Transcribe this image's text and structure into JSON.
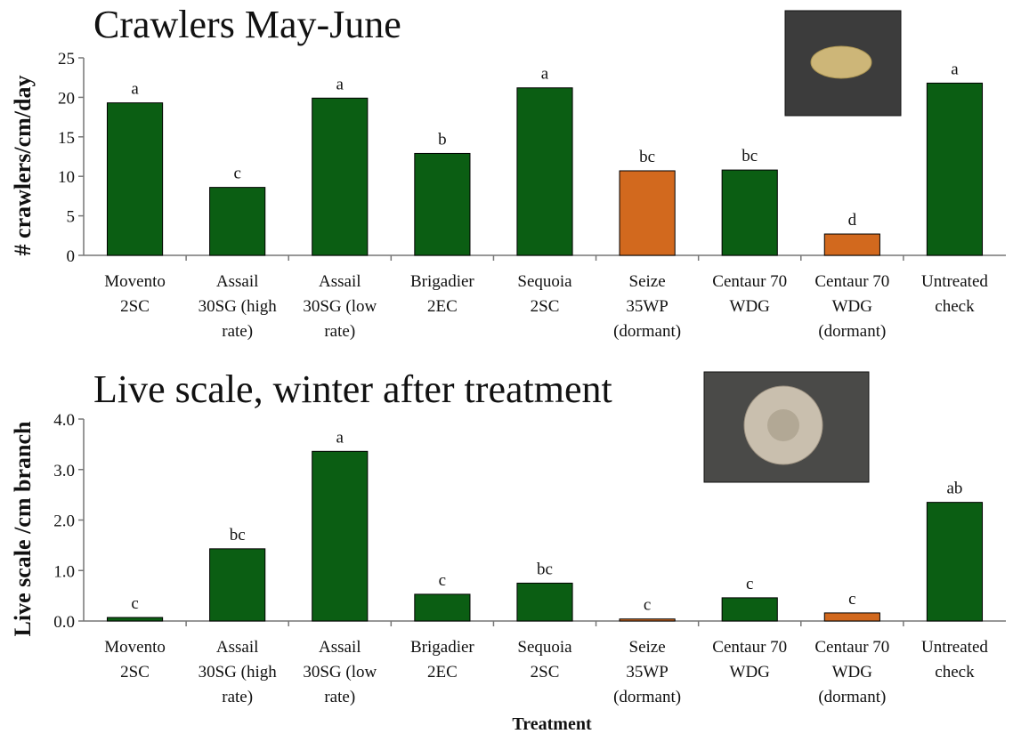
{
  "chart_data": [
    {
      "type": "bar",
      "title": "Crawlers May-June",
      "ylabel": "# crawlers/cm/day",
      "categories": [
        "Movento\n2SC",
        "Assail\n30SG (high\nrate)",
        "Assail\n30SG (low\nrate)",
        "Brigadier\n2EC",
        "Sequoia\n2SC",
        "Seize\n35WP\n(dormant)",
        "Centaur 70\nWDG",
        "Centaur 70\nWDG\n(dormant)",
        "Untreated\ncheck"
      ],
      "values": [
        19.3,
        8.6,
        19.9,
        12.9,
        21.2,
        10.7,
        10.8,
        2.7,
        21.8
      ],
      "annotations": [
        "a",
        "c",
        "a",
        "b",
        "a",
        "bc",
        "bc",
        "d",
        "a"
      ],
      "colors": [
        "#0b5e13",
        "#0b5e13",
        "#0b5e13",
        "#0b5e13",
        "#0b5e13",
        "#d2691e",
        "#0b5e13",
        "#d2691e",
        "#0b5e13"
      ],
      "ylim": [
        0,
        25
      ],
      "yticks": [
        0,
        5,
        10,
        15,
        20,
        25
      ],
      "grid": false
    },
    {
      "type": "bar",
      "title": "Live scale, winter after treatment",
      "ylabel": "Live scale /cm branch",
      "xlabel": "Treatment",
      "categories": [
        "Movento\n2SC",
        "Assail\n30SG (high\nrate)",
        "Assail\n30SG (low\nrate)",
        "Brigadier\n2EC",
        "Sequoia\n2SC",
        "Seize\n35WP\n(dormant)",
        "Centaur 70\nWDG",
        "Centaur 70\nWDG\n(dormant)",
        "Untreated\ncheck"
      ],
      "values": [
        0.07,
        1.43,
        3.36,
        0.53,
        0.75,
        0.04,
        0.46,
        0.16,
        2.35
      ],
      "annotations": [
        "c",
        "bc",
        "a",
        "c",
        "bc",
        "c",
        "c",
        "c",
        "ab"
      ],
      "colors": [
        "#0b5e13",
        "#0b5e13",
        "#0b5e13",
        "#0b5e13",
        "#0b5e13",
        "#d2691e",
        "#0b5e13",
        "#d2691e",
        "#0b5e13"
      ],
      "ylim": [
        0,
        4
      ],
      "yticks": [
        {
          "value": 0,
          "label": "0.0"
        },
        {
          "value": 1,
          "label": "1.0"
        },
        {
          "value": 2,
          "label": "2.0"
        },
        {
          "value": 3,
          "label": "3.0"
        },
        {
          "value": 4,
          "label": "4.0"
        }
      ],
      "grid": false
    }
  ]
}
